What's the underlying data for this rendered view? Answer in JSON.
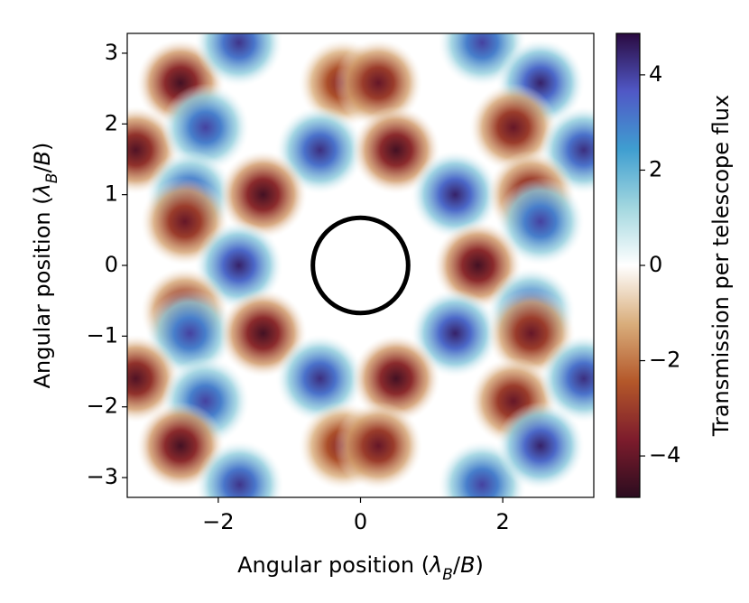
{
  "chart_data": {
    "type": "heatmap",
    "xlabel": [
      "Angular position (",
      "λ",
      "B",
      "/",
      "B",
      ")"
    ],
    "ylabel": [
      "Angular position (",
      "λ",
      "B",
      "/",
      "B",
      ")"
    ],
    "colorbar_label": "Transmission per telescope flux",
    "xlim": [
      -3.28,
      3.28
    ],
    "ylim": [
      -3.28,
      3.28
    ],
    "xticks": [
      {
        "value": -2,
        "label": "−2"
      },
      0,
      2
    ],
    "yticks": [
      {
        "value": -3,
        "label": "−3"
      },
      {
        "value": -2,
        "label": "−2"
      },
      {
        "value": -1,
        "label": "−1"
      },
      0,
      1,
      2,
      3
    ],
    "zlim": [
      -4.87,
      4.87
    ],
    "zticks": [
      {
        "value": -4,
        "label": "−4"
      },
      {
        "value": -2,
        "label": "−2"
      },
      0,
      2,
      4
    ],
    "colormap": [
      "#2b0c1f",
      "#7d1c2c",
      "#b4582a",
      "#d9ae7c",
      "#ffffff",
      "#a2d7df",
      "#3f9ed0",
      "#5058c6",
      "#2a0a40"
    ],
    "circle": {
      "x": 0,
      "y": 0,
      "r": 0.67,
      "color": "#000000"
    },
    "peaks": [
      {
        "x": -2.53,
        "y": 2.58,
        "value": -4.5
      },
      {
        "x": -1.71,
        "y": 3.15,
        "value": 4.2
      },
      {
        "x": -0.25,
        "y": 2.58,
        "value": -3.5
      },
      {
        "x": 0.25,
        "y": 2.58,
        "value": -4.0
      },
      {
        "x": 1.71,
        "y": 3.15,
        "value": 4.0
      },
      {
        "x": 2.53,
        "y": 2.58,
        "value": 4.5
      },
      {
        "x": -3.16,
        "y": 1.63,
        "value": -4.3
      },
      {
        "x": -2.18,
        "y": 1.95,
        "value": 4.0
      },
      {
        "x": -0.57,
        "y": 1.63,
        "value": 4.3
      },
      {
        "x": 0.5,
        "y": 1.63,
        "value": -4.5
      },
      {
        "x": 2.15,
        "y": 1.95,
        "value": -4.0
      },
      {
        "x": 3.14,
        "y": 1.63,
        "value": 4.3
      },
      {
        "x": -2.4,
        "y": 1.0,
        "value": 4.0
      },
      {
        "x": -1.37,
        "y": 1.0,
        "value": -4.5
      },
      {
        "x": 1.33,
        "y": 1.0,
        "value": 4.5
      },
      {
        "x": 2.4,
        "y": 1.0,
        "value": -4.0
      },
      {
        "x": -2.47,
        "y": 0.62,
        "value": -4.0
      },
      {
        "x": 2.53,
        "y": 0.62,
        "value": 4.0
      },
      {
        "x": -1.71,
        "y": 0,
        "value": 4.5
      },
      {
        "x": 1.65,
        "y": 0,
        "value": -4.5
      },
      {
        "x": -2.47,
        "y": -0.65,
        "value": -4.0
      },
      {
        "x": -2.4,
        "y": -0.96,
        "value": 4.0
      },
      {
        "x": -1.37,
        "y": -0.96,
        "value": -4.5
      },
      {
        "x": 1.33,
        "y": -0.96,
        "value": 4.5
      },
      {
        "x": 2.4,
        "y": -0.65,
        "value": 4.0
      },
      {
        "x": 2.4,
        "y": -0.96,
        "value": -4.0
      },
      {
        "x": -3.16,
        "y": -1.6,
        "value": -4.3
      },
      {
        "x": -2.18,
        "y": -1.92,
        "value": 4.0
      },
      {
        "x": -0.57,
        "y": -1.6,
        "value": 4.3
      },
      {
        "x": 0.5,
        "y": -1.6,
        "value": -4.5
      },
      {
        "x": 2.15,
        "y": -1.92,
        "value": -4.0
      },
      {
        "x": 3.14,
        "y": -1.6,
        "value": 4.3
      },
      {
        "x": -2.53,
        "y": -2.55,
        "value": -4.5
      },
      {
        "x": -1.7,
        "y": -3.1,
        "value": 4.2
      },
      {
        "x": -0.25,
        "y": -2.55,
        "value": -3.5
      },
      {
        "x": 0.25,
        "y": -2.55,
        "value": -4.0
      },
      {
        "x": 1.71,
        "y": -3.1,
        "value": 4.0
      },
      {
        "x": 2.53,
        "y": -2.55,
        "value": 4.5
      }
    ]
  }
}
